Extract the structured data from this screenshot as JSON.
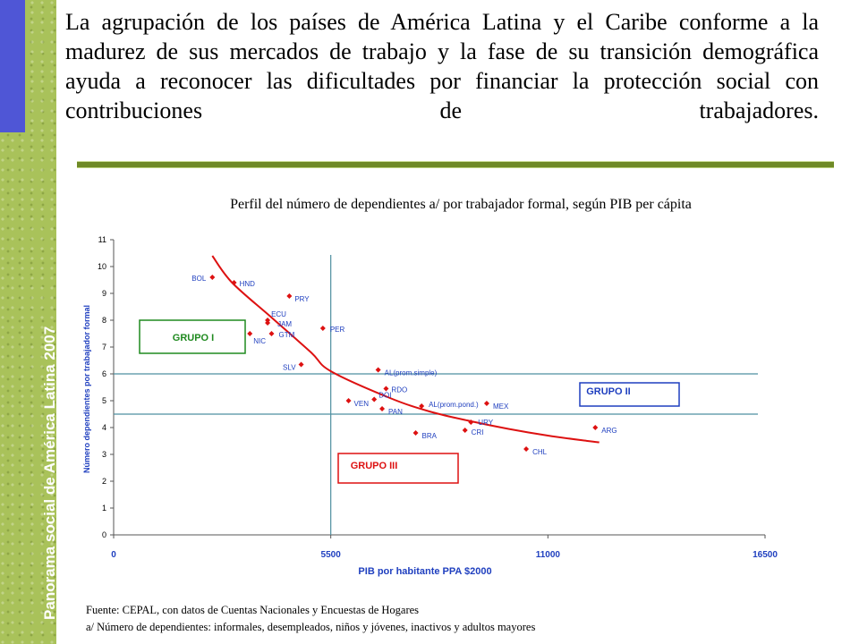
{
  "sidebar": {
    "title": "Panorama social de América Latina 2007",
    "background_color": "#a9c25a",
    "accent_color": "#4f56d6"
  },
  "headline": "La agrupación de los países de América Latina y el Caribe conforme a la madurez de sus mercados de trabajo y la fase de su transición demográfica ayuda a reconocer las dificultades por financiar la protección social con contribuciones de trabajadores.",
  "chart_title": "Perfil del número de dependientes a/ por trabajador formal, según PIB per cápita",
  "chart_data": {
    "type": "scatter",
    "xlabel": "PIB por habitante PPA $2000",
    "ylabel": "Número dependientes por trabajador formal",
    "xlim": [
      0,
      16500
    ],
    "ylim": [
      0,
      11
    ],
    "x_ticks": [
      "0",
      "5500",
      "11000",
      "16500"
    ],
    "y_ticks": [
      "0",
      "1",
      "2",
      "3",
      "4",
      "5",
      "6",
      "7",
      "8",
      "9",
      "10",
      "11"
    ],
    "grid": false,
    "reference_lines": {
      "x": 5500,
      "y": [
        6,
        4.5
      ]
    },
    "points": [
      {
        "label": "BOL",
        "x": 2500,
        "y": 9.6
      },
      {
        "label": "HND",
        "x": 3050,
        "y": 9.4
      },
      {
        "label": "PRY",
        "x": 4450,
        "y": 8.9
      },
      {
        "label": "ECU",
        "x": 3900,
        "y": 8.0
      },
      {
        "label": "JAM",
        "x": 3900,
        "y": 7.9
      },
      {
        "label": "NIC",
        "x": 3450,
        "y": 7.5
      },
      {
        "label": "GTM",
        "x": 4000,
        "y": 7.5
      },
      {
        "label": "PER",
        "x": 5300,
        "y": 7.7
      },
      {
        "label": "SLV",
        "x": 4750,
        "y": 6.35
      },
      {
        "label": "AL(prom.simple)",
        "x": 6700,
        "y": 6.15
      },
      {
        "label": "RDO",
        "x": 6900,
        "y": 5.45
      },
      {
        "label": "DOI",
        "x": 6600,
        "y": 5.05
      },
      {
        "label": "VEN",
        "x": 5950,
        "y": 5.0
      },
      {
        "label": "PAN",
        "x": 6800,
        "y": 4.7
      },
      {
        "label": "AL(prom.pond.)",
        "x": 7800,
        "y": 4.8
      },
      {
        "label": "MEX",
        "x": 9450,
        "y": 4.9
      },
      {
        "label": "URY",
        "x": 9050,
        "y": 4.2
      },
      {
        "label": "CRI",
        "x": 8900,
        "y": 3.9
      },
      {
        "label": "BRA",
        "x": 7650,
        "y": 3.8
      },
      {
        "label": "CHL",
        "x": 10450,
        "y": 3.2
      },
      {
        "label": "ARG",
        "x": 12200,
        "y": 4.0
      }
    ],
    "trend": {
      "type": "curve",
      "points": [
        [
          2500,
          10.4
        ],
        [
          3000,
          9.4
        ],
        [
          4000,
          8.1
        ],
        [
          5000,
          6.8
        ],
        [
          5500,
          6.1
        ],
        [
          7000,
          5.1
        ],
        [
          8000,
          4.6
        ],
        [
          9000,
          4.25
        ],
        [
          10000,
          3.95
        ],
        [
          11000,
          3.7
        ],
        [
          12000,
          3.5
        ],
        [
          12300,
          3.45
        ]
      ],
      "color": "#dd1111"
    },
    "groups": [
      {
        "label": "GRUPO I",
        "color": "#1f8a1f"
      },
      {
        "label": "GRUPO II",
        "color": "#1f3fbf"
      },
      {
        "label": "GRUPO III",
        "color": "#dd1111"
      }
    ],
    "marker_color": "#dd1111",
    "reference_line_color": "#4e8fa0"
  },
  "footnotes": {
    "source": "Fuente: CEPAL, con datos de Cuentas Nacionales y Encuestas de Hogares",
    "note": "a/ Número de dependientes: informales, desempleados, niños y jóvenes, inactivos y adultos mayores"
  }
}
